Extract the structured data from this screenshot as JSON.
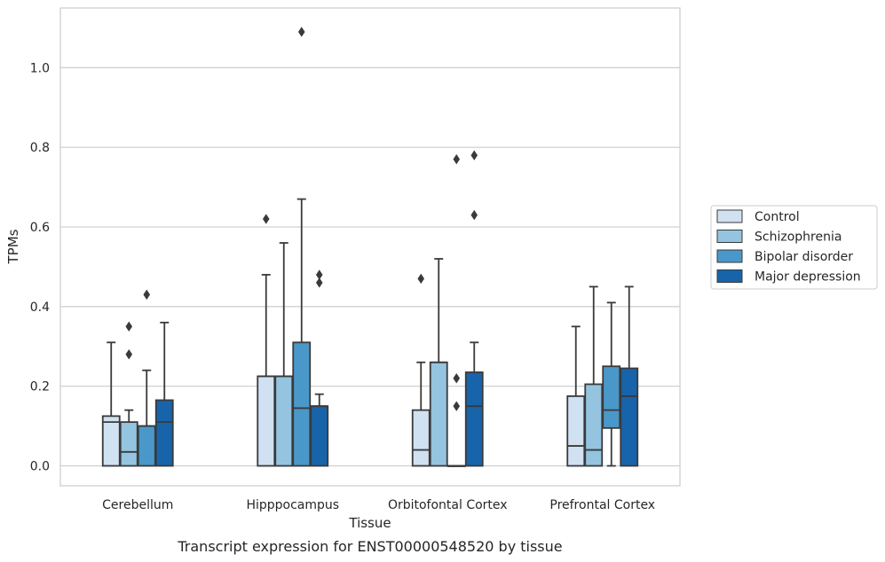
{
  "chart_data": {
    "type": "box",
    "title": "",
    "caption": "Transcript expression for ENST00000548520 by tissue",
    "xlabel": "Tissue",
    "ylabel": "TPMs",
    "ylim": [
      -0.05,
      1.15
    ],
    "yticks": [
      0.0,
      0.2,
      0.4,
      0.6,
      0.8,
      1.0
    ],
    "ytick_labels": [
      "0.0",
      "0.2",
      "0.4",
      "0.6",
      "0.8",
      "1.0"
    ],
    "grid": "horizontal",
    "legend_position": "right",
    "categories": [
      "Cerebellum",
      "Hipppocampus",
      "Orbitofontal Cortex",
      "Prefrontal Cortex"
    ],
    "series": [
      {
        "name": "Control",
        "color": "#d0e1f2",
        "boxes": [
          {
            "whisker_low": 0.0,
            "q1": 0.0,
            "median": 0.11,
            "q3": 0.125,
            "whisker_high": 0.31,
            "outliers": []
          },
          {
            "whisker_low": 0.0,
            "q1": 0.0,
            "median": 0.225,
            "q3": 0.225,
            "whisker_high": 0.48,
            "outliers": [
              0.62
            ]
          },
          {
            "whisker_low": 0.0,
            "q1": 0.0,
            "median": 0.04,
            "q3": 0.14,
            "whisker_high": 0.26,
            "outliers": [
              0.47
            ]
          },
          {
            "whisker_low": 0.0,
            "q1": 0.0,
            "median": 0.05,
            "q3": 0.175,
            "whisker_high": 0.35,
            "outliers": []
          }
        ]
      },
      {
        "name": "Schizophrenia",
        "color": "#94c4df",
        "boxes": [
          {
            "whisker_low": 0.0,
            "q1": 0.0,
            "median": 0.035,
            "q3": 0.11,
            "whisker_high": 0.14,
            "outliers": [
              0.28,
              0.35
            ]
          },
          {
            "whisker_low": 0.0,
            "q1": 0.0,
            "median": 0.225,
            "q3": 0.225,
            "whisker_high": 0.56,
            "outliers": []
          },
          {
            "whisker_low": 0.0,
            "q1": 0.0,
            "median": 0.26,
            "q3": 0.26,
            "whisker_high": 0.52,
            "outliers": []
          },
          {
            "whisker_low": 0.0,
            "q1": 0.0,
            "median": 0.04,
            "q3": 0.205,
            "whisker_high": 0.45,
            "outliers": []
          }
        ]
      },
      {
        "name": "Bipolar disorder",
        "color": "#4a98c9",
        "boxes": [
          {
            "whisker_low": 0.0,
            "q1": 0.0,
            "median": 0.1,
            "q3": 0.1,
            "whisker_high": 0.24,
            "outliers": [
              0.43
            ]
          },
          {
            "whisker_low": 0.0,
            "q1": 0.0,
            "median": 0.145,
            "q3": 0.31,
            "whisker_high": 0.67,
            "outliers": [
              1.09
            ]
          },
          {
            "whisker_low": 0.0,
            "q1": 0.0,
            "median": 0.0,
            "q3": 0.0,
            "whisker_high": 0.0,
            "outliers": [
              0.15,
              0.22,
              0.77
            ]
          },
          {
            "whisker_low": 0.0,
            "q1": 0.095,
            "median": 0.14,
            "q3": 0.25,
            "whisker_high": 0.41,
            "outliers": []
          }
        ]
      },
      {
        "name": "Major depression",
        "color": "#1764ab",
        "boxes": [
          {
            "whisker_low": 0.0,
            "q1": 0.0,
            "median": 0.11,
            "q3": 0.165,
            "whisker_high": 0.36,
            "outliers": []
          },
          {
            "whisker_low": 0.0,
            "q1": 0.0,
            "median": 0.15,
            "q3": 0.15,
            "whisker_high": 0.18,
            "outliers": [
              0.46,
              0.48
            ]
          },
          {
            "whisker_low": 0.0,
            "q1": 0.0,
            "median": 0.15,
            "q3": 0.235,
            "whisker_high": 0.31,
            "outliers": [
              0.63,
              0.78
            ]
          },
          {
            "whisker_low": 0.0,
            "q1": 0.0,
            "median": 0.175,
            "q3": 0.245,
            "whisker_high": 0.45,
            "outliers": []
          }
        ]
      }
    ]
  }
}
